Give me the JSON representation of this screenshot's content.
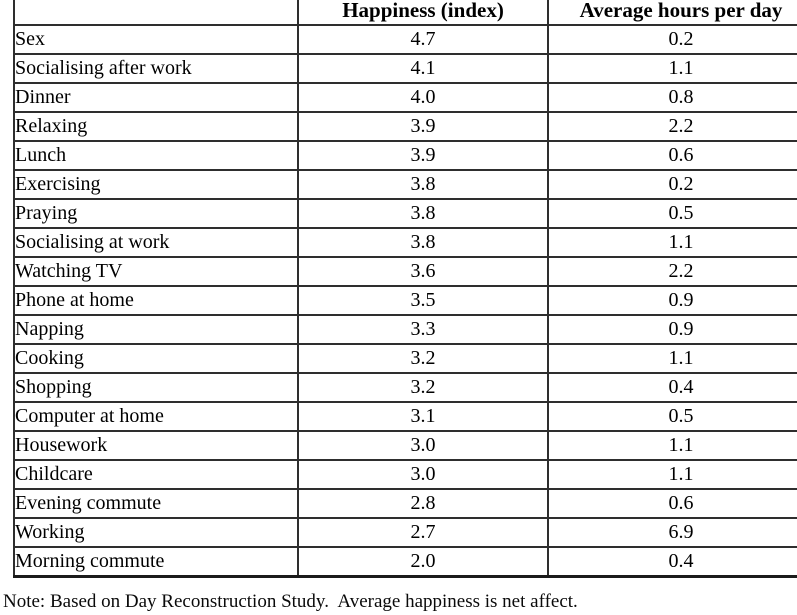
{
  "table": {
    "columns": [
      "",
      "Happiness (index)",
      "Average hours per day"
    ],
    "rows": [
      {
        "activity": "Sex",
        "happiness": "4.7",
        "hours": "0.2"
      },
      {
        "activity": "Socialising after work",
        "happiness": "4.1",
        "hours": "1.1"
      },
      {
        "activity": "Dinner",
        "happiness": "4.0",
        "hours": "0.8"
      },
      {
        "activity": "Relaxing",
        "happiness": "3.9",
        "hours": "2.2"
      },
      {
        "activity": "Lunch",
        "happiness": "3.9",
        "hours": "0.6"
      },
      {
        "activity": "Exercising",
        "happiness": "3.8",
        "hours": "0.2"
      },
      {
        "activity": "Praying",
        "happiness": "3.8",
        "hours": "0.5"
      },
      {
        "activity": "Socialising at work",
        "happiness": "3.8",
        "hours": "1.1"
      },
      {
        "activity": "Watching TV",
        "happiness": "3.6",
        "hours": "2.2"
      },
      {
        "activity": "Phone at home",
        "happiness": "3.5",
        "hours": "0.9"
      },
      {
        "activity": "Napping",
        "happiness": "3.3",
        "hours": "0.9"
      },
      {
        "activity": "Cooking",
        "happiness": "3.2",
        "hours": "1.1"
      },
      {
        "activity": "Shopping",
        "happiness": "3.2",
        "hours": "0.4"
      },
      {
        "activity": "Computer at home",
        "happiness": "3.1",
        "hours": "0.5"
      },
      {
        "activity": "Housework",
        "happiness": "3.0",
        "hours": "1.1"
      },
      {
        "activity": "Childcare",
        "happiness": "3.0",
        "hours": "1.1"
      },
      {
        "activity": "Evening commute",
        "happiness": "2.8",
        "hours": "0.6"
      },
      {
        "activity": "Working",
        "happiness": "2.7",
        "hours": "6.9"
      },
      {
        "activity": "Morning commute",
        "happiness": "2.0",
        "hours": "0.4"
      }
    ]
  },
  "note": {
    "text": "Note: Based on Day Reconstruction Study.  Average happiness is net affect."
  }
}
